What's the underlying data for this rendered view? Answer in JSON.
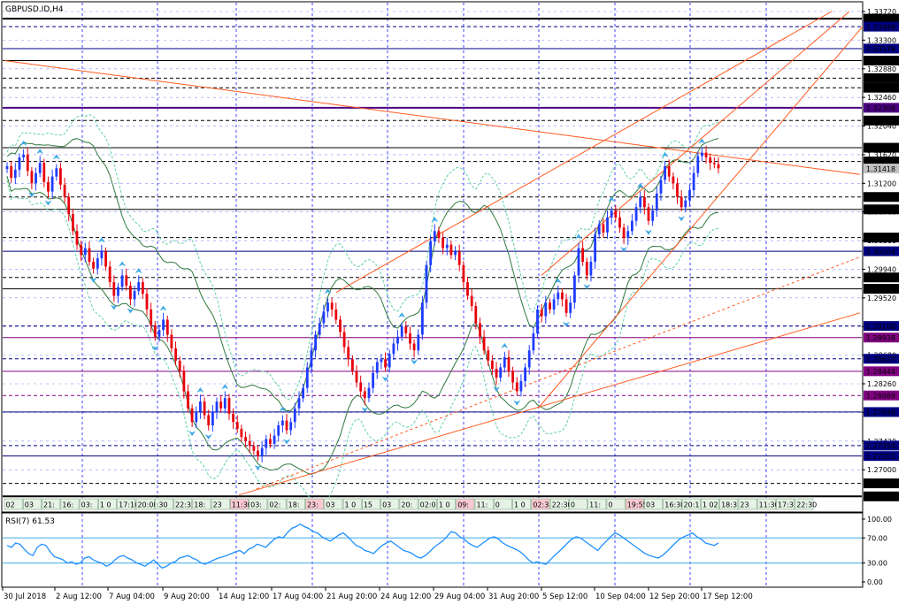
{
  "symbol_title": "GBPUSD.ID,H4",
  "rsi_label": "RSI(7) 61.53",
  "colors": {
    "grid": "#1a1aff",
    "bull": "#1e3cff",
    "bear": "#e8000b",
    "trend": "#ff5a1f",
    "band_outer": "#5fd1a3",
    "band_inner": "#2f7a3e",
    "arrow": "#3fa8e6",
    "rsi_line": "#1e90ff",
    "rsi_level": "#3fa8e6"
  },
  "chart_data": {
    "type": "candlestick",
    "price_axis_ticks": [
      "1.33720",
      "1.33300",
      "1.32880",
      "1.32460",
      "1.32040",
      "1.31620",
      "1.31200",
      "1.30780",
      "1.30360",
      "1.29940",
      "1.29520",
      "1.29100",
      "1.28680",
      "1.28260",
      "1.27840",
      "1.27420",
      "1.27000"
    ],
    "ylim": [
      1.266,
      1.3372
    ],
    "price_lines": [
      {
        "value": 1.33615,
        "label": "1.33615",
        "style": "solid",
        "color": "#000000",
        "width": 2
      },
      {
        "value": 1.33498,
        "label": "1.33498",
        "style": "dashed",
        "color": "#000080"
      },
      {
        "value": 1.33176,
        "label": "1.33176",
        "style": "solid",
        "color": "#000080"
      },
      {
        "value": 1.33,
        "label": "1.33000",
        "style": "solid",
        "color": "#000000"
      },
      {
        "value": 1.32743,
        "label": "1.32743",
        "style": "dashed",
        "color": "#000000"
      },
      {
        "value": 1.32602,
        "label": "1.32602",
        "style": "dashed",
        "color": "#000000"
      },
      {
        "value": 1.32308,
        "label": "1.32308",
        "style": "solid",
        "color": "#4b0082",
        "width": 2
      },
      {
        "value": 1.32121,
        "label": "1.32121",
        "style": "dashed",
        "color": "#000000"
      },
      {
        "value": 1.31722,
        "label": "1.31722",
        "style": "solid",
        "color": "#000000"
      },
      {
        "value": 1.3152,
        "label": "1.31520",
        "style": "dashed",
        "color": "#000000"
      },
      {
        "value": 1.31418,
        "label": "1.31418",
        "style": "current",
        "color": "#808080"
      },
      {
        "value": 1.31,
        "label": "1.31000",
        "style": "dashed",
        "color": "#000000"
      },
      {
        "value": 1.30818,
        "label": "1.30818",
        "style": "solid",
        "color": "#000000"
      },
      {
        "value": 1.30405,
        "label": "1.30405",
        "style": "dashed",
        "color": "#000000"
      },
      {
        "value": 1.30204,
        "label": "1.30204",
        "style": "solid",
        "color": "#000080"
      },
      {
        "value": 1.2982,
        "label": "1.29820",
        "style": "dashed",
        "color": "#000000"
      },
      {
        "value": 1.29653,
        "label": "1.29653",
        "style": "solid",
        "color": "#000000"
      },
      {
        "value": 1.29108,
        "label": "1.29108",
        "style": "dashed",
        "color": "#000080"
      },
      {
        "value": 1.28938,
        "label": "1.28938",
        "style": "solid",
        "color": "#800080"
      },
      {
        "value": 1.28627,
        "label": "1.28627",
        "style": "dashed",
        "color": "#000080"
      },
      {
        "value": 1.28444,
        "label": "1.28444",
        "style": "solid",
        "color": "#800080"
      },
      {
        "value": 1.28089,
        "label": "1.28089",
        "style": "dashed",
        "color": "#800080"
      },
      {
        "value": 1.27846,
        "label": "1.27846",
        "style": "solid",
        "color": "#000080"
      },
      {
        "value": 1.27354,
        "label": "1.27354",
        "style": "dashed",
        "color": "#000080"
      },
      {
        "value": 1.27201,
        "label": "1.27201",
        "style": "solid",
        "color": "#000080"
      },
      {
        "value": 1.268,
        "label": "1.26800",
        "style": "dashed",
        "color": "#000000"
      },
      {
        "value": 1.26609,
        "label": "1.26609",
        "style": "solid",
        "color": "#000000",
        "width": 2
      }
    ],
    "session_labels": [
      "02",
      "03",
      "21:",
      "16:",
      "03:",
      "1 0",
      "17:10",
      "20:00",
      ":30",
      "22:3",
      "18:",
      "23",
      "11:30",
      "03:",
      "02:",
      "18:",
      "23:",
      "03",
      "1 0",
      "15",
      "03",
      "20:",
      "02:0",
      "1 0",
      "09:",
      "11:",
      "0",
      "1 0",
      "02:3",
      "22:30",
      "0",
      "11:",
      "0",
      "19:55",
      "03",
      "16:30",
      "20:1",
      "1 02",
      "18:3",
      "23",
      "11:30",
      "17:3",
      "22:30"
    ],
    "date_axis": [
      "30 Jul 2018",
      "2 Aug 12:00",
      "7 Aug 04:00",
      "9 Aug 20:00",
      "14 Aug 12:00",
      "17 Aug 04:00",
      "21 Aug 20:00",
      "24 Aug 12:00",
      "29 Aug 04:00",
      "31 Aug 20:00",
      "5 Sep 12:00",
      "10 Sep 04:00",
      "12 Sep 20:00",
      "17 Sep 12:00"
    ],
    "closes": [
      1.3145,
      1.3128,
      1.314,
      1.3158,
      1.3162,
      1.3138,
      1.312,
      1.3135,
      1.315,
      1.3122,
      1.3108,
      1.313,
      1.3142,
      1.3118,
      1.31,
      1.3075,
      1.305,
      1.303,
      1.3015,
      1.3025,
      1.3005,
      1.2995,
      1.301,
      1.302,
      1.2998,
      1.2975,
      1.2955,
      1.2968,
      1.2985,
      1.297,
      1.295,
      1.2962,
      1.2975,
      1.2958,
      1.2935,
      1.2912,
      1.2895,
      1.2905,
      1.292,
      1.2898,
      1.2878,
      1.286,
      1.2845,
      1.2815,
      1.279,
      1.277,
      1.2785,
      1.28,
      1.278,
      1.2765,
      1.2785,
      1.28,
      1.279,
      1.2805,
      1.2782,
      1.277,
      1.276,
      1.2748,
      1.2742,
      1.2735,
      1.2728,
      1.272,
      1.2732,
      1.2745,
      1.2738,
      1.275,
      1.2765,
      1.2772,
      1.2758,
      1.277,
      1.279,
      1.2805,
      1.282,
      1.285,
      1.2875,
      1.2898,
      1.2915,
      1.2932,
      1.2945,
      1.2935,
      1.292,
      1.2902,
      1.288,
      1.2862,
      1.2845,
      1.2828,
      1.2815,
      1.2805,
      1.282,
      1.2842,
      1.2858,
      1.2862,
      1.285,
      1.287,
      1.2885,
      1.2895,
      1.291,
      1.29,
      1.2885,
      1.2875,
      1.2898,
      1.2945,
      1.3,
      1.3035,
      1.305,
      1.304,
      1.3025,
      1.303,
      1.3015,
      1.302,
      1.3,
      1.2975,
      1.2955,
      1.294,
      1.2915,
      1.2895,
      1.2875,
      1.286,
      1.2848,
      1.2835,
      1.285,
      1.2865,
      1.2845,
      1.2828,
      1.2815,
      1.283,
      1.285,
      1.2875,
      1.29,
      1.2935,
      1.2925,
      1.2945,
      1.2935,
      1.295,
      1.296,
      1.295,
      1.293,
      1.2945,
      1.2985,
      1.3025,
      1.3005,
      1.2985,
      1.3005,
      1.3045,
      1.306,
      1.3048,
      1.307,
      1.308,
      1.307,
      1.3055,
      1.304,
      1.305,
      1.3065,
      1.3085,
      1.31,
      1.3085,
      1.3065,
      1.308,
      1.3105,
      1.3125,
      1.3145,
      1.313,
      1.312,
      1.31,
      1.3085,
      1.3095,
      1.311,
      1.3135,
      1.316,
      1.3165,
      1.3158,
      1.315,
      1.3148,
      1.3142
    ],
    "rsi_ticks": [
      "100.00",
      "70.00",
      "30.00",
      "0.00"
    ],
    "rsi_levels": [
      70,
      30
    ],
    "rsi_values": [
      58,
      55,
      62,
      60,
      52,
      45,
      42,
      55,
      60,
      58,
      48,
      40,
      38,
      35,
      30,
      32,
      28,
      30,
      38,
      40,
      35,
      32,
      30,
      25,
      28,
      35,
      40,
      42,
      38,
      35,
      30,
      28,
      25,
      30,
      35,
      28,
      22,
      25,
      30,
      32,
      38,
      40,
      42,
      38,
      35,
      30,
      28,
      32,
      35,
      38,
      40,
      42,
      45,
      48,
      50,
      45,
      52,
      55,
      60,
      58,
      55,
      62,
      68,
      72,
      70,
      78,
      85,
      88,
      92,
      88,
      85,
      80,
      78,
      72,
      68,
      65,
      70,
      75,
      78,
      72,
      65,
      58,
      55,
      50,
      48,
      45,
      52,
      58,
      62,
      65,
      60,
      55,
      50,
      48,
      45,
      40,
      38,
      42,
      48,
      55,
      60,
      65,
      72,
      80,
      78,
      72,
      68,
      62,
      58,
      55,
      60,
      65,
      70,
      72,
      68,
      62,
      58,
      55,
      52,
      48,
      42,
      35,
      30,
      32,
      30,
      28,
      35,
      42,
      48,
      55,
      62,
      68,
      72,
      70,
      65,
      60,
      55,
      50,
      58,
      65,
      72,
      78,
      75,
      70,
      65,
      60,
      55,
      50,
      45,
      42,
      40,
      38,
      42,
      48,
      55,
      62,
      68,
      72,
      75,
      78,
      72,
      68,
      62,
      60,
      58,
      62
    ]
  }
}
